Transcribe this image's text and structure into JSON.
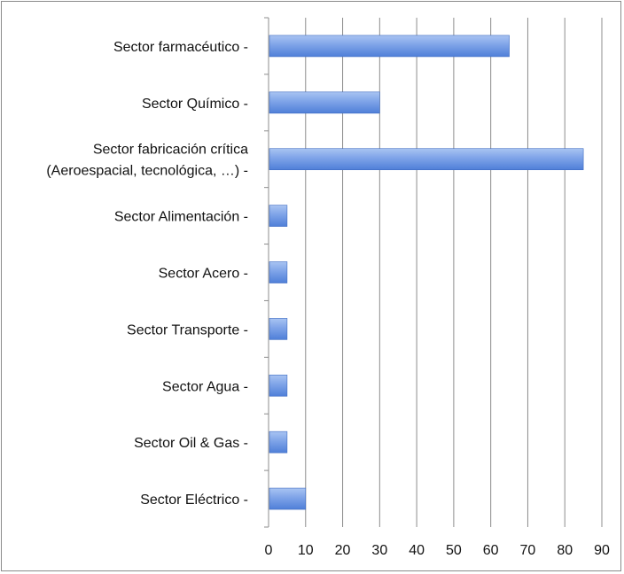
{
  "chart_data": {
    "type": "bar",
    "orientation": "horizontal",
    "categories": [
      [
        "Sector farmacéutico -"
      ],
      [
        "Sector Químico -"
      ],
      [
        "Sector fabricación crítica",
        "(Aeroespacial, tecnológica, …) -"
      ],
      [
        "Sector Alimentación -"
      ],
      [
        "Sector Acero -"
      ],
      [
        "Sector Transporte -"
      ],
      [
        "Sector Agua -"
      ],
      [
        "Sector Oil & Gas -"
      ],
      [
        "Sector Eléctrico -"
      ]
    ],
    "values": [
      65,
      30,
      85,
      5,
      5,
      5,
      5,
      5,
      10
    ],
    "xlim": [
      0,
      90
    ],
    "xticks": [
      0,
      10,
      20,
      30,
      40,
      50,
      60,
      70,
      80,
      90
    ],
    "grid": "vertical",
    "legend": "none",
    "colors": {
      "bar_top": "#a9c4f2",
      "bar_bottom": "#4f7fd8",
      "bar_stroke": "#3f6cc2",
      "grid": "#8c8c8c"
    }
  }
}
